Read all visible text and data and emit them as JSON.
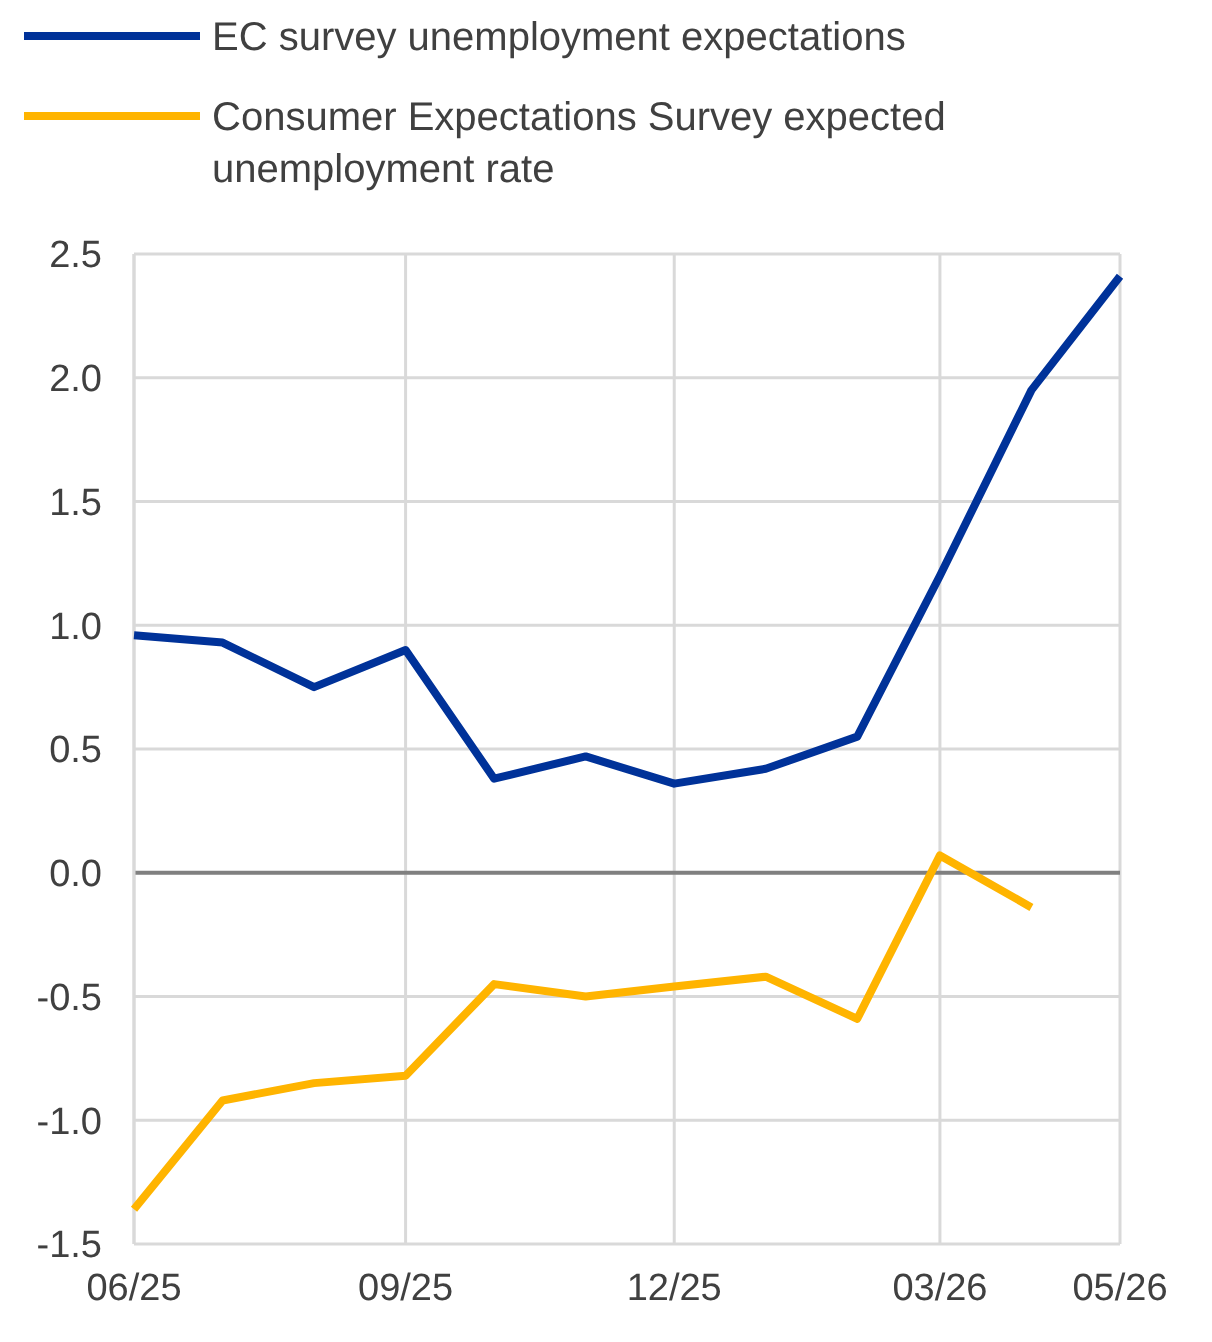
{
  "chart_data": {
    "type": "line",
    "x": [
      "2025-06",
      "2025-07",
      "2025-08",
      "2025-09",
      "2025-10",
      "2025-11",
      "2025-12",
      "2026-01",
      "2026-02",
      "2026-03",
      "2026-04",
      "2026-05"
    ],
    "series": [
      {
        "name": "EC survey unemployment expectations",
        "color": "#003299",
        "values": [
          0.96,
          0.93,
          0.75,
          0.9,
          0.38,
          0.47,
          0.36,
          0.42,
          0.55,
          1.2,
          1.95,
          2.41
        ]
      },
      {
        "name": "Consumer Expectations Survey expected unemployment rate",
        "color": "#ffb400",
        "values": [
          -1.36,
          -0.92,
          -0.85,
          -0.82,
          -0.45,
          -0.5,
          -0.46,
          -0.42,
          -0.59,
          0.07,
          -0.14,
          null
        ]
      }
    ],
    "xlim": [
      "2025-06",
      "2026-05"
    ],
    "xticks": [
      {
        "value": "2025-06",
        "label": "06/25"
      },
      {
        "value": "2025-09",
        "label": "09/25"
      },
      {
        "value": "2025-12",
        "label": "12/25"
      },
      {
        "value": "2026-03",
        "label": "03/26"
      },
      {
        "value": "2026-05",
        "label": "05/26"
      }
    ],
    "ylim": [
      -1.5,
      2.5
    ],
    "yticks": [
      {
        "value": -1.5,
        "label": "-1.5"
      },
      {
        "value": -1,
        "label": "-1.0"
      },
      {
        "value": -0.5,
        "label": "-0.5"
      },
      {
        "value": 0,
        "label": "0.0"
      },
      {
        "value": 0.5,
        "label": "0.5"
      },
      {
        "value": 1,
        "label": "1.0"
      },
      {
        "value": 1.5,
        "label": "1.5"
      },
      {
        "value": 2,
        "label": "2.0"
      },
      {
        "value": 2.5,
        "label": "2.5"
      }
    ],
    "grid": true,
    "legend": "top",
    "marker": "none",
    "line_style": "solid"
  }
}
